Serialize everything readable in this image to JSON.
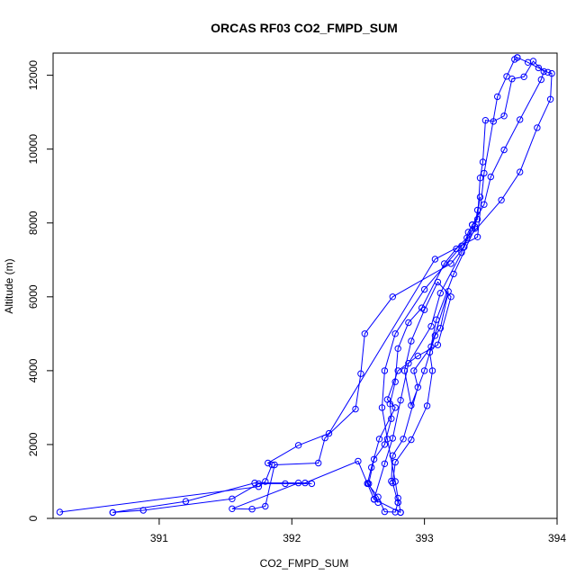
{
  "chart_data": {
    "type": "line",
    "title": "ORCAS RF03 CO2_FMPD_SUM",
    "xlabel": "CO2_FMPD_SUM",
    "ylabel": "Altitude (m)",
    "xlim": [
      390.2,
      394.0
    ],
    "ylim": [
      0,
      12600
    ],
    "x_ticks": [
      391,
      392,
      393,
      394
    ],
    "y_ticks": [
      0,
      2000,
      4000,
      6000,
      8000,
      10000,
      12000
    ],
    "marker": "open-circle",
    "color": "#0000ff",
    "grid": false,
    "series": [
      {
        "points": [
          [
            390.25,
            170
          ],
          [
            391.75,
            860
          ],
          [
            391.8,
            1000
          ],
          [
            391.85,
            1450
          ],
          [
            391.82,
            1500
          ],
          [
            392.05,
            1980
          ],
          [
            392.28,
            2300
          ],
          [
            393.08,
            7020
          ],
          [
            393.4,
            7620
          ],
          [
            393.45,
            9350
          ],
          [
            393.55,
            11420
          ],
          [
            393.62,
            11970
          ],
          [
            393.68,
            12430
          ],
          [
            393.7,
            12480
          ]
        ]
      },
      {
        "points": [
          [
            393.7,
            12480
          ],
          [
            393.78,
            12350
          ],
          [
            393.86,
            12200
          ],
          [
            393.93,
            12080
          ],
          [
            393.96,
            12050
          ],
          [
            393.95,
            11350
          ],
          [
            393.85,
            10580
          ],
          [
            393.72,
            9380
          ],
          [
            393.58,
            8620
          ],
          [
            393.28,
            7380
          ],
          [
            393.0,
            6200
          ],
          [
            392.78,
            5000
          ],
          [
            392.7,
            4000
          ],
          [
            392.68,
            3000
          ],
          [
            392.72,
            2150
          ],
          [
            392.78,
            1000
          ],
          [
            392.8,
            550
          ],
          [
            392.82,
            160
          ]
        ]
      },
      {
        "points": [
          [
            392.82,
            160
          ],
          [
            392.62,
            520
          ],
          [
            392.57,
            940
          ],
          [
            392.5,
            1550
          ],
          [
            392.1,
            960
          ],
          [
            391.72,
            960
          ],
          [
            391.2,
            460
          ],
          [
            390.65,
            160
          ]
        ]
      },
      {
        "points": [
          [
            390.65,
            160
          ],
          [
            390.88,
            220
          ],
          [
            391.55,
            530
          ],
          [
            391.75,
            940
          ],
          [
            391.95,
            940
          ],
          [
            392.15,
            940
          ],
          [
            392.05,
            960
          ],
          [
            391.55,
            260
          ],
          [
            391.7,
            250
          ],
          [
            391.8,
            330
          ],
          [
            391.87,
            1450
          ],
          [
            392.2,
            1500
          ],
          [
            392.25,
            2180
          ],
          [
            392.48,
            2960
          ],
          [
            392.52,
            3920
          ],
          [
            392.55,
            5000
          ],
          [
            392.76,
            6000
          ],
          [
            393.2,
            6900
          ],
          [
            393.3,
            7350
          ],
          [
            393.36,
            7950
          ]
        ]
      },
      {
        "points": [
          [
            393.36,
            7950
          ],
          [
            393.4,
            8100
          ],
          [
            393.42,
            9220
          ],
          [
            393.44,
            9650
          ],
          [
            393.46,
            10780
          ],
          [
            393.52,
            10750
          ],
          [
            393.6,
            10900
          ],
          [
            393.66,
            11900
          ],
          [
            393.75,
            11960
          ],
          [
            393.82,
            12380
          ],
          [
            393.9,
            12100
          ],
          [
            393.88,
            11880
          ],
          [
            393.72,
            10800
          ],
          [
            393.6,
            9980
          ],
          [
            393.5,
            9250
          ],
          [
            393.45,
            8500
          ],
          [
            393.33,
            7750
          ],
          [
            393.28,
            7200
          ],
          [
            393.12,
            6100
          ],
          [
            393.05,
            5200
          ],
          [
            392.88,
            4200
          ],
          [
            392.82,
            3200
          ],
          [
            392.76,
            2170
          ],
          [
            392.7,
            1480
          ],
          [
            392.62,
            520
          ]
        ]
      },
      {
        "points": [
          [
            392.62,
            520
          ],
          [
            392.65,
            430
          ],
          [
            392.58,
            940
          ],
          [
            392.62,
            1600
          ],
          [
            392.7,
            2000
          ],
          [
            392.75,
            2700
          ],
          [
            392.74,
            3100
          ],
          [
            392.78,
            3700
          ],
          [
            392.8,
            4600
          ],
          [
            392.88,
            5300
          ],
          [
            392.98,
            5700
          ],
          [
            393.15,
            6900
          ],
          [
            393.24,
            7300
          ],
          [
            393.32,
            7600
          ],
          [
            393.38,
            7900
          ],
          [
            393.4,
            8350
          ],
          [
            393.42,
            8700
          ],
          [
            393.38,
            7850
          ],
          [
            393.22,
            6620
          ],
          [
            393.09,
            5380
          ],
          [
            393.04,
            4500
          ],
          [
            393.06,
            4000
          ],
          [
            393.02,
            3050
          ],
          [
            392.9,
            2130
          ],
          [
            392.78,
            1520
          ],
          [
            392.76,
            960
          ],
          [
            392.8,
            430
          ]
        ]
      },
      {
        "points": [
          [
            392.8,
            430
          ],
          [
            392.78,
            170
          ],
          [
            392.7,
            180
          ],
          [
            392.65,
            580
          ],
          [
            392.57,
            950
          ],
          [
            392.6,
            1380
          ],
          [
            392.66,
            2150
          ],
          [
            392.78,
            3000
          ],
          [
            392.72,
            3220
          ],
          [
            392.8,
            4000
          ],
          [
            392.95,
            4400
          ],
          [
            393.1,
            4700
          ],
          [
            393.2,
            6000
          ],
          [
            393.1,
            6400
          ],
          [
            393.0,
            5650
          ],
          [
            392.9,
            4800
          ],
          [
            392.85,
            4000
          ],
          [
            392.9,
            3060
          ],
          [
            393.0,
            4000
          ],
          [
            393.08,
            4950
          ],
          [
            393.12,
            5150
          ],
          [
            393.18,
            6150
          ],
          [
            393.05,
            4650
          ],
          [
            392.92,
            4000
          ],
          [
            392.95,
            3550
          ],
          [
            392.84,
            2150
          ],
          [
            392.76,
            1700
          ],
          [
            392.75,
            1010
          ]
        ]
      }
    ]
  }
}
